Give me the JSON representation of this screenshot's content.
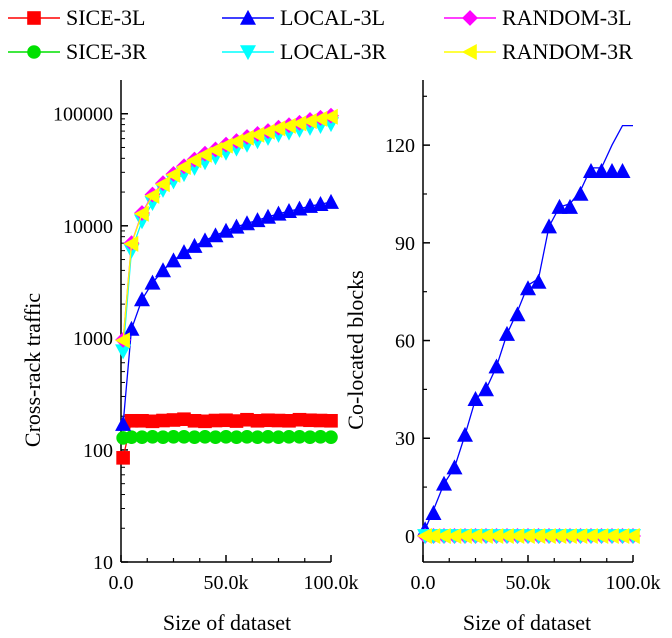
{
  "chart_data": [
    {
      "type": "line",
      "ylabel": "Cross-rack traffic",
      "xlabel": "Size of dataset",
      "yscale": "log",
      "xlim": [
        0,
        100000
      ],
      "ylim": [
        10,
        200000
      ],
      "x_ticks": [
        0,
        50000,
        100000
      ],
      "x_tick_labels": [
        "0.0",
        "50.0k",
        "100.0k"
      ],
      "y_ticks": [
        10,
        100,
        1000,
        10000,
        100000
      ],
      "y_tick_labels": [
        "10",
        "100",
        "1000",
        "10000",
        "100000"
      ],
      "series": [
        {
          "name": "SICE-3L",
          "color": "#ff0000",
          "marker": "square",
          "x": [
            1000,
            5000,
            10000,
            15000,
            20000,
            25000,
            30000,
            35000,
            40000,
            45000,
            50000,
            55000,
            60000,
            65000,
            70000,
            75000,
            80000,
            85000,
            90000,
            95000,
            100000
          ],
          "y": [
            85,
            182,
            182,
            180,
            183,
            185,
            188,
            182,
            180,
            183,
            184,
            181,
            186,
            182,
            184,
            183,
            182,
            186,
            184,
            183,
            182
          ]
        },
        {
          "name": "SICE-3R",
          "color": "#00e000",
          "marker": "circle",
          "x": [
            1000,
            5000,
            10000,
            15000,
            20000,
            25000,
            30000,
            35000,
            40000,
            45000,
            50000,
            55000,
            60000,
            65000,
            70000,
            75000,
            80000,
            85000,
            90000,
            95000,
            100000
          ],
          "y": [
            128,
            130,
            130,
            131,
            130,
            131,
            131,
            130,
            131,
            130,
            131,
            130,
            131,
            130,
            131,
            130,
            131,
            131,
            130,
            131,
            130
          ]
        },
        {
          "name": "LOCAL-3L",
          "color": "#0000ff",
          "marker": "triangle-up",
          "x": [
            1000,
            5000,
            10000,
            15000,
            20000,
            25000,
            30000,
            35000,
            40000,
            45000,
            50000,
            55000,
            60000,
            65000,
            70000,
            75000,
            80000,
            85000,
            90000,
            95000,
            100000
          ],
          "y": [
            170,
            1200,
            2200,
            3100,
            4000,
            4900,
            5800,
            6600,
            7400,
            8200,
            9000,
            9800,
            10500,
            11200,
            12000,
            12800,
            13500,
            14200,
            15000,
            15600,
            16300
          ]
        },
        {
          "name": "LOCAL-3R",
          "color": "#00ffff",
          "marker": "triangle-down",
          "x": [
            1000,
            5000,
            10000,
            15000,
            20000,
            25000,
            30000,
            35000,
            40000,
            45000,
            50000,
            55000,
            60000,
            65000,
            70000,
            75000,
            80000,
            85000,
            90000,
            95000,
            100000
          ],
          "y": [
            760,
            6000,
            11000,
            16000,
            21000,
            25000,
            29000,
            33000,
            37000,
            41000,
            45000,
            49000,
            53000,
            57000,
            61000,
            65000,
            68000,
            72000,
            75000,
            78000,
            81000
          ]
        },
        {
          "name": "RANDOM-3L",
          "color": "#ff00ff",
          "marker": "diamond",
          "x": [
            1000,
            5000,
            10000,
            15000,
            20000,
            25000,
            30000,
            35000,
            40000,
            45000,
            50000,
            55000,
            60000,
            65000,
            70000,
            75000,
            80000,
            85000,
            90000,
            95000,
            100000
          ],
          "y": [
            960,
            7000,
            13000,
            19000,
            24000,
            29000,
            34000,
            39000,
            44000,
            48000,
            53000,
            57000,
            62000,
            66000,
            70000,
            75000,
            79000,
            83000,
            88000,
            92000,
            96000
          ]
        },
        {
          "name": "RANDOM-3R",
          "color": "#ffff00",
          "marker": "triangle-left",
          "x": [
            1000,
            5000,
            10000,
            15000,
            20000,
            25000,
            30000,
            35000,
            40000,
            45000,
            50000,
            55000,
            60000,
            65000,
            70000,
            75000,
            80000,
            85000,
            90000,
            95000,
            100000
          ],
          "y": [
            950,
            6900,
            12800,
            18500,
            23500,
            28500,
            33500,
            38500,
            43000,
            47500,
            52000,
            56500,
            61000,
            65000,
            69000,
            74000,
            78000,
            82000,
            86000,
            90000,
            94000
          ]
        }
      ]
    },
    {
      "type": "line",
      "ylabel": "Co-located blocks",
      "xlabel": "Size of dataset",
      "xlim": [
        0,
        100000
      ],
      "ylim": [
        -8,
        140
      ],
      "x_ticks": [
        0,
        50000,
        100000
      ],
      "x_tick_labels": [
        "0.0",
        "50.0k",
        "100.0k"
      ],
      "y_ticks": [
        0,
        30,
        60,
        90,
        120
      ],
      "y_tick_labels": [
        "0",
        "30",
        "60",
        "90",
        "120"
      ],
      "series": [
        {
          "name": "LOCAL-3L",
          "color": "#0000ff",
          "marker": "triangle-up",
          "x": [
            1000,
            5000,
            10000,
            15000,
            20000,
            25000,
            30000,
            35000,
            40000,
            45000,
            50000,
            55000,
            60000,
            65000,
            70000,
            75000,
            80000,
            85000,
            90000,
            95000,
            100000
          ],
          "y": [
            2,
            8,
            16,
            21,
            31,
            42,
            45,
            52,
            62,
            69,
            77,
            79,
            95,
            101,
            102,
            106,
            113,
            113,
            120,
            126,
            126
          ],
          "marker_x": [
            1000,
            5000,
            10000,
            15000,
            20000,
            25000,
            30000,
            35000,
            40000,
            45000,
            50000,
            55000,
            60000,
            65000,
            70000,
            75000,
            80000,
            85000,
            90000,
            95000
          ],
          "marker_y": [
            2,
            7,
            16,
            21,
            31,
            42,
            45,
            52,
            62,
            68,
            76,
            78,
            95,
            101,
            101,
            105,
            112,
            112,
            112,
            112
          ]
        },
        {
          "name": "SICE-3L",
          "color": "#ff0000",
          "marker": "square",
          "x": [
            0,
            100000
          ],
          "y": [
            0,
            0
          ],
          "marker_x": [],
          "marker_y": []
        },
        {
          "name": "SICE-3R",
          "color": "#00e000",
          "marker": "circle",
          "x": [
            0,
            100000
          ],
          "y": [
            0,
            0
          ],
          "marker_x": [],
          "marker_y": []
        },
        {
          "name": "RANDOM-3L",
          "color": "#ff00ff",
          "marker": "diamond",
          "x": [
            1000,
            5000,
            10000,
            15000,
            20000,
            25000,
            30000,
            35000,
            40000,
            45000,
            50000,
            55000,
            60000,
            65000,
            70000,
            75000,
            80000,
            85000,
            90000,
            95000,
            100000
          ],
          "y": [
            0,
            0,
            0,
            0,
            0,
            0,
            0,
            0,
            0,
            0,
            0,
            0,
            0,
            0,
            0,
            0,
            0,
            0,
            0,
            0,
            0
          ]
        },
        {
          "name": "LOCAL-3R",
          "color": "#00ffff",
          "marker": "triangle-down",
          "x": [
            1000,
            5000,
            10000,
            15000,
            20000,
            25000,
            30000,
            35000,
            40000,
            45000,
            50000,
            55000,
            60000,
            65000,
            70000,
            75000,
            80000,
            85000,
            90000,
            95000,
            100000
          ],
          "y": [
            0,
            0,
            0,
            0,
            0,
            0,
            0,
            0,
            0,
            0,
            0,
            0,
            0,
            0,
            0,
            0,
            0,
            0,
            0,
            0,
            0
          ]
        },
        {
          "name": "RANDOM-3R",
          "color": "#ffff00",
          "marker": "triangle-left",
          "x": [
            1000,
            5000,
            10000,
            15000,
            20000,
            25000,
            30000,
            35000,
            40000,
            45000,
            50000,
            55000,
            60000,
            65000,
            70000,
            75000,
            80000,
            85000,
            90000,
            95000,
            100000
          ],
          "y": [
            0,
            0,
            0,
            0,
            0,
            0,
            0,
            0,
            0,
            0,
            0,
            0,
            0,
            0,
            0,
            0,
            0,
            0,
            0,
            0,
            0
          ]
        }
      ]
    }
  ],
  "legend": {
    "items": [
      {
        "label": "SICE-3L",
        "color": "#ff0000",
        "marker": "square"
      },
      {
        "label": "LOCAL-3L",
        "color": "#0000ff",
        "marker": "triangle-up"
      },
      {
        "label": "RANDOM-3L",
        "color": "#ff00ff",
        "marker": "diamond"
      },
      {
        "label": "SICE-3R",
        "color": "#00e000",
        "marker": "circle"
      },
      {
        "label": "LOCAL-3R",
        "color": "#00ffff",
        "marker": "triangle-down"
      },
      {
        "label": "RANDOM-3R",
        "color": "#ffff00",
        "marker": "triangle-left"
      }
    ]
  }
}
